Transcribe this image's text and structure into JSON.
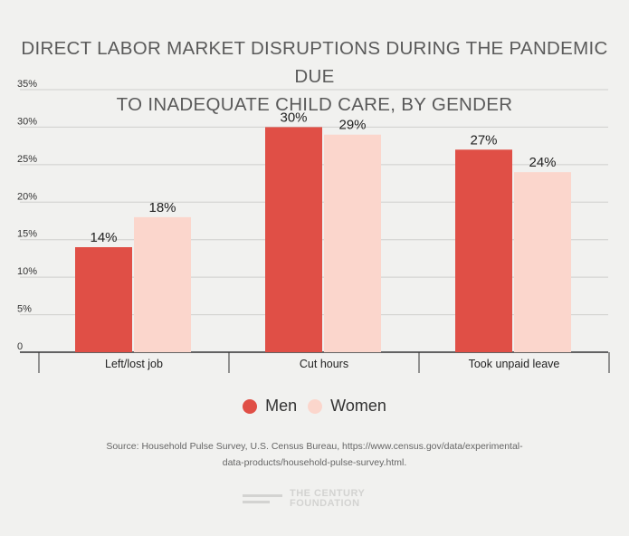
{
  "chart_data": {
    "type": "bar",
    "title_line1": "DIRECT LABOR MARKET DISRUPTIONS DURING THE PANDEMIC DUE",
    "title_line2": "TO INADEQUATE CHILD CARE, BY GENDER",
    "categories": [
      "Left/lost job",
      "Cut hours",
      "Took unpaid leave"
    ],
    "series": [
      {
        "name": "Men",
        "values": [
          14,
          30,
          27
        ],
        "labels": [
          "14%",
          "30%",
          "27%"
        ],
        "color": "#e04f46"
      },
      {
        "name": "Women",
        "values": [
          18,
          29,
          24
        ],
        "labels": [
          "18%",
          "29%",
          "24%"
        ],
        "color": "#fbd6cc"
      }
    ],
    "yticks": [
      {
        "value": 35,
        "label": "35%"
      },
      {
        "value": 30,
        "label": "30%"
      },
      {
        "value": 25,
        "label": "25%"
      },
      {
        "value": 20,
        "label": "20%"
      },
      {
        "value": 15,
        "label": "15%"
      },
      {
        "value": 10,
        "label": "10%"
      },
      {
        "value": 5,
        "label": "5%"
      },
      {
        "value": 0,
        "label": "0"
      }
    ],
    "ylim": [
      0,
      35
    ],
    "grid": true,
    "legend_position": "bottom"
  },
  "source_line1": "Source: Household Pulse Survey, U.S. Census Bureau, https://www.census.gov/data/experimental-",
  "source_line2": "data-products/household-pulse-survey.html.",
  "logo_line1": "THE CENTURY",
  "logo_line2": "FOUNDATION",
  "colors": {
    "background": "#f1f1ef",
    "grid": "#cfcfcd",
    "axis": "#333333"
  }
}
